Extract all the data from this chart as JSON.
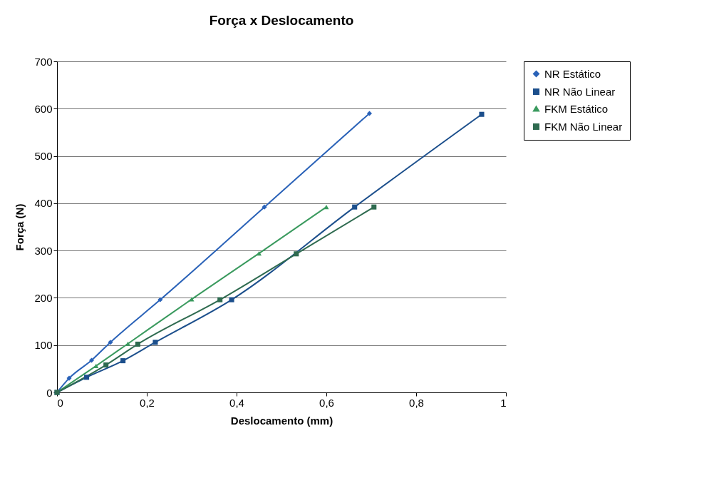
{
  "chart_data": {
    "type": "line",
    "title": "Força x Deslocamento",
    "xlabel": "Deslocamento (mm)",
    "ylabel": "Força (N)",
    "series": [
      {
        "name": "NR Estático",
        "color": "#2a62b8",
        "marker": "diamond",
        "x": [
          0,
          0.027,
          0.077,
          0.119,
          0.23,
          0.462,
          0.696
        ],
        "values": [
          0,
          30,
          68,
          106,
          196,
          392,
          590
        ]
      },
      {
        "name": "NR Não Linear",
        "color": "#1c4f8c",
        "marker": "square",
        "x": [
          0,
          0.066,
          0.147,
          0.219,
          0.389,
          0.663,
          0.946
        ],
        "values": [
          0,
          32,
          67,
          106,
          196,
          392,
          588
        ]
      },
      {
        "name": "FKM Estático",
        "color": "#3a9a5e",
        "marker": "triangle",
        "x": [
          0,
          0.087,
          0.158,
          0.3,
          0.45,
          0.6
        ],
        "values": [
          0,
          56,
          103,
          197,
          294,
          392
        ]
      },
      {
        "name": "FKM Não Linear",
        "color": "#2f6b50",
        "marker": "square",
        "x": [
          0,
          0.109,
          0.18,
          0.363,
          0.533,
          0.706
        ],
        "values": [
          0,
          58,
          102,
          196,
          293,
          392
        ]
      }
    ],
    "xlim": [
      0,
      1
    ],
    "xticks": [
      0,
      {
        "value": 0.2,
        "label": "0,2"
      },
      {
        "value": 0.4,
        "label": "0,4"
      },
      {
        "value": 0.6,
        "label": "0,6"
      },
      {
        "value": 0.8,
        "label": "0,8"
      },
      1
    ],
    "ylim": [
      0,
      700
    ],
    "yticks": [
      0,
      100,
      200,
      300,
      400,
      500,
      600,
      700
    ],
    "grid": "y",
    "legend": "right",
    "line_style": "solid"
  }
}
